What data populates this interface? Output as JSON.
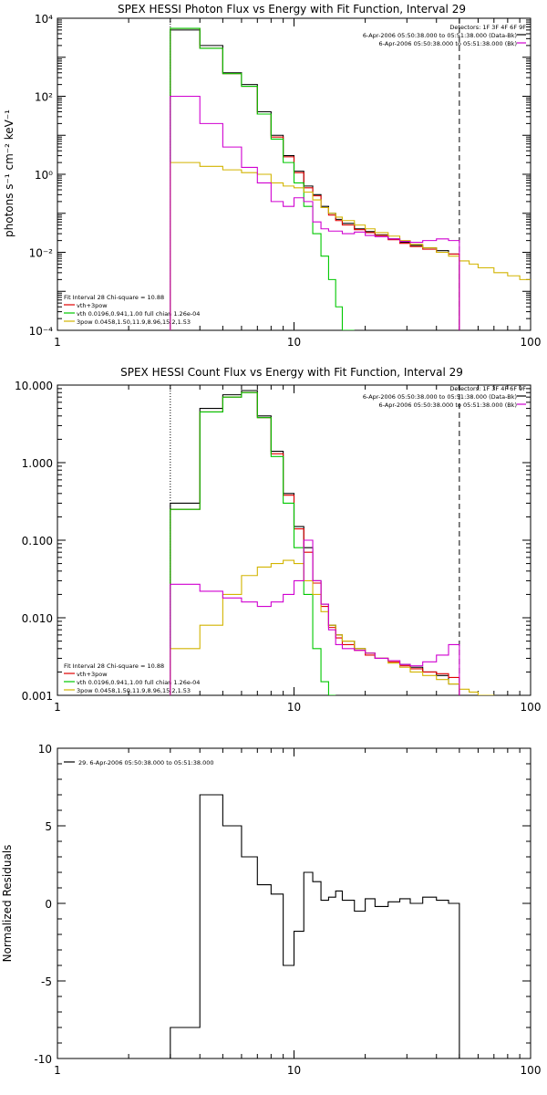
{
  "chart_data": [
    {
      "type": "line",
      "title": "SPEX HESSI Photon Flux vs Energy with Fit Function, Interval 29",
      "xlabel": "",
      "ylabel": "photons s⁻¹ cm⁻² keV⁻¹",
      "xscale": "log",
      "yscale": "log",
      "xlim": [
        1,
        100
      ],
      "ylim": [
        0.0001,
        10000
      ],
      "xticks": [
        "1",
        "10",
        "100"
      ],
      "yticks": [
        "10⁻⁴",
        "10⁻²",
        "10⁰",
        "10²",
        "10⁴"
      ],
      "info_lines": [
        "Detectors: 1F 3F 4F 6F 9F",
        "6-Apr-2006 05:50:38.000 to 05:51:38.000 (Data-Bk)",
        "6-Apr-2006 05:50:38.000 to 05:51:38.000 (Bk)"
      ],
      "legend_lines": [
        "Fit Interval 28   Chi-square = 10.88",
        "vth+3pow",
        "vth 0.0196,0.941,1.00  full chian 1.26e-04",
        "3pow 0.0458,1.50,11.9,8.96,15.2,1.53"
      ],
      "vlines": [
        3.0,
        50.0
      ],
      "series": [
        {
          "name": "Data-Bk",
          "color": "#000000",
          "edges": [
            3,
            4,
            5,
            6,
            7,
            8,
            9,
            10,
            11,
            12,
            13,
            14,
            15,
            16,
            18,
            20,
            22,
            25,
            28,
            31,
            35,
            40,
            45,
            50
          ],
          "values": [
            5000,
            2000,
            400,
            200,
            40,
            10,
            3,
            1.2,
            0.5,
            0.3,
            0.15,
            0.1,
            0.07,
            0.055,
            0.04,
            0.034,
            0.028,
            0.022,
            0.018,
            0.015,
            0.013,
            0.011,
            0.009
          ]
        },
        {
          "name": "vth+3pow",
          "color": "#e00000",
          "edges": [
            3,
            4,
            5,
            6,
            7,
            8,
            9,
            10,
            11,
            12,
            13,
            14,
            15,
            16,
            18,
            20,
            22,
            25,
            28,
            31,
            35,
            40,
            45,
            50
          ],
          "values": [
            5500,
            1700,
            380,
            180,
            35,
            9,
            2.8,
            1.1,
            0.45,
            0.28,
            0.14,
            0.09,
            0.065,
            0.05,
            0.038,
            0.032,
            0.027,
            0.021,
            0.017,
            0.014,
            0.012,
            0.01,
            0.009
          ]
        },
        {
          "name": "vth",
          "color": "#00c800",
          "edges": [
            3,
            4,
            5,
            6,
            7,
            8,
            9,
            10,
            11,
            12,
            13,
            14,
            15,
            16,
            18
          ],
          "values": [
            5500,
            1700,
            380,
            180,
            35,
            8,
            2,
            0.6,
            0.15,
            0.03,
            0.008,
            0.002,
            0.0004,
            0.0001
          ]
        },
        {
          "name": "3pow",
          "color": "#d2b400",
          "edges": [
            3,
            4,
            5,
            6,
            7,
            8,
            9,
            10,
            11,
            12,
            13,
            14,
            15,
            16,
            18,
            20,
            22,
            25,
            28,
            31,
            35,
            40,
            45,
            50,
            55,
            60,
            70,
            80,
            90,
            100
          ],
          "values": [
            2,
            1.6,
            1.3,
            1.1,
            1.0,
            0.6,
            0.5,
            0.45,
            0.35,
            0.22,
            0.14,
            0.1,
            0.08,
            0.065,
            0.05,
            0.04,
            0.032,
            0.026,
            0.02,
            0.016,
            0.013,
            0.01,
            0.008,
            0.006,
            0.005,
            0.004,
            0.003,
            0.0025,
            0.002
          ]
        },
        {
          "name": "Bk",
          "color": "#d000d0",
          "edges": [
            3,
            4,
            5,
            6,
            7,
            8,
            9,
            10,
            11,
            12,
            13,
            14,
            15,
            16,
            18,
            20,
            22,
            25,
            28,
            31,
            35,
            40,
            45,
            50
          ],
          "values": [
            100,
            20,
            5,
            1.5,
            0.6,
            0.2,
            0.15,
            0.25,
            0.2,
            0.06,
            0.04,
            0.035,
            0.035,
            0.03,
            0.033,
            0.027,
            0.025,
            0.022,
            0.019,
            0.018,
            0.02,
            0.022,
            0.02
          ]
        }
      ]
    },
    {
      "type": "line",
      "title": "SPEX HESSI Count Flux vs Energy with Fit Function, Interval 29",
      "xlabel": "",
      "ylabel": "",
      "xscale": "log",
      "yscale": "log",
      "xlim": [
        1,
        100
      ],
      "ylim": [
        0.001,
        10
      ],
      "xticks": [
        "1",
        "10",
        "100"
      ],
      "yticks": [
        "0.001",
        "0.010",
        "0.100",
        "1.000",
        "10.000"
      ],
      "info_lines": [
        "Detectors: 1F 3F 4F 6F 9F",
        "6-Apr-2006 05:50:38.000 to 05:51:38.000 (Data-Bk)",
        "6-Apr-2006 05:50:38.000 to 05:51:38.000 (Bk)"
      ],
      "legend_lines": [
        "Fit Interval 28   Chi-square = 10.88",
        "vth+3pow",
        "vth 0.0196,0.941,1.00  full chian 1.26e-04",
        "3pow 0.0458,1.50,11.9,8.96,15.2,1.53"
      ],
      "vlines": [
        3.0,
        50.0
      ],
      "series": [
        {
          "name": "Data-Bk",
          "color": "#000000",
          "edges": [
            3,
            4,
            5,
            6,
            7,
            8,
            9,
            10,
            11,
            12,
            13,
            14,
            15,
            16,
            18,
            20,
            22,
            25,
            28,
            31,
            35,
            40,
            45,
            50
          ],
          "values": [
            0.3,
            5.0,
            7.5,
            8.5,
            4.0,
            1.4,
            0.4,
            0.15,
            0.08,
            0.03,
            0.015,
            0.008,
            0.006,
            0.005,
            0.004,
            0.0035,
            0.003,
            0.0028,
            0.0025,
            0.0023,
            0.002,
            0.0018,
            0.0014
          ]
        },
        {
          "name": "vth+3pow",
          "color": "#e00000",
          "edges": [
            3,
            4,
            5,
            6,
            7,
            8,
            9,
            10,
            11,
            12,
            13,
            14,
            15,
            16,
            18,
            20,
            22,
            25,
            28,
            31,
            35,
            40,
            45,
            50
          ],
          "values": [
            0.25,
            4.5,
            7.0,
            8.0,
            3.8,
            1.3,
            0.38,
            0.14,
            0.07,
            0.028,
            0.014,
            0.0075,
            0.0055,
            0.0045,
            0.0038,
            0.0033,
            0.003,
            0.0027,
            0.0024,
            0.0022,
            0.002,
            0.0019,
            0.0017
          ]
        },
        {
          "name": "vth",
          "color": "#00c800",
          "edges": [
            3,
            4,
            5,
            6,
            7,
            8,
            9,
            10,
            11,
            12,
            13,
            14,
            15
          ],
          "values": [
            0.25,
            4.5,
            7.0,
            8.0,
            3.8,
            1.2,
            0.3,
            0.08,
            0.02,
            0.004,
            0.0015,
            0.001
          ]
        },
        {
          "name": "3pow",
          "color": "#d2b400",
          "edges": [
            3,
            4,
            5,
            6,
            7,
            8,
            9,
            10,
            11,
            12,
            13,
            14,
            15,
            16,
            18,
            20,
            22,
            25,
            28,
            31,
            35,
            40,
            45,
            50,
            55,
            60,
            70,
            80,
            90,
            100
          ],
          "values": [
            0.004,
            0.008,
            0.02,
            0.035,
            0.045,
            0.05,
            0.055,
            0.05,
            0.03,
            0.02,
            0.012,
            0.008,
            0.006,
            0.005,
            0.004,
            0.0035,
            0.003,
            0.0026,
            0.0023,
            0.002,
            0.0018,
            0.0016,
            0.0014,
            0.0012,
            0.0011,
            0.001,
            0.0009,
            0.0008,
            0.0007
          ]
        },
        {
          "name": "Bk",
          "color": "#d000d0",
          "edges": [
            3,
            4,
            5,
            6,
            7,
            8,
            9,
            10,
            11,
            12,
            13,
            14,
            15,
            16,
            18,
            20,
            22,
            25,
            28,
            31,
            35,
            40,
            45,
            50
          ],
          "values": [
            0.027,
            0.022,
            0.018,
            0.016,
            0.014,
            0.016,
            0.02,
            0.03,
            0.1,
            0.03,
            0.015,
            0.007,
            0.0045,
            0.004,
            0.0038,
            0.0035,
            0.003,
            0.0028,
            0.0025,
            0.0024,
            0.0027,
            0.0033,
            0.0045
          ]
        }
      ]
    },
    {
      "type": "line",
      "title": "",
      "xlabel": "",
      "ylabel": "Normalized Residuals",
      "xscale": "log",
      "yscale": "linear",
      "xlim": [
        1,
        100
      ],
      "ylim": [
        -10,
        10
      ],
      "xticks": [
        "1",
        "10",
        "100"
      ],
      "yticks": [
        "-10",
        "-5",
        "0",
        "5",
        "10"
      ],
      "legend_lines": [
        "29.  6-Apr-2006 05:50:38.000 to 05:51:38.000"
      ],
      "series": [
        {
          "name": "29.  6-Apr-2006 05:50:38.000 to 05:51:38.000",
          "color": "#000000",
          "edges": [
            3,
            4,
            5,
            6,
            7,
            8,
            9,
            10,
            11,
            12,
            13,
            14,
            15,
            16,
            18,
            20,
            22,
            25,
            28,
            31,
            35,
            40,
            45,
            50
          ],
          "values": [
            -8,
            7,
            5,
            3,
            1.2,
            0.6,
            -4,
            -1.8,
            2,
            1.4,
            0.2,
            0.4,
            0.8,
            0.2,
            -0.5,
            0.3,
            -0.2,
            0.1,
            0.3,
            0.0,
            0.4,
            0.2,
            0.0
          ]
        }
      ]
    }
  ]
}
